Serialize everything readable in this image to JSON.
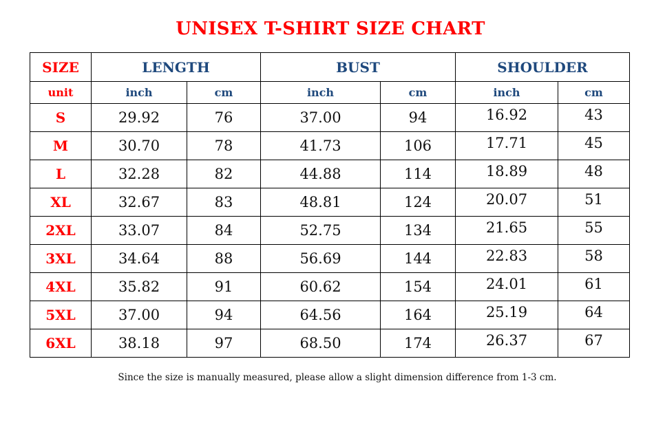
{
  "title": "UNISEX T-SHIRT SIZE CHART",
  "headers": {
    "size": "SIZE",
    "length": "LENGTH",
    "bust": "BUST",
    "shoulder": "SHOULDER"
  },
  "units": {
    "label": "unit",
    "inch": "inch",
    "cm": "cm"
  },
  "rows": [
    {
      "size": "S",
      "length_in": "29.92",
      "length_cm": "76",
      "bust_in": "37.00",
      "bust_cm": "94",
      "shoulder_in": "16.92",
      "shoulder_cm": "43"
    },
    {
      "size": "M",
      "length_in": "30.70",
      "length_cm": "78",
      "bust_in": "41.73",
      "bust_cm": "106",
      "shoulder_in": "17.71",
      "shoulder_cm": "45"
    },
    {
      "size": "L",
      "length_in": "32.28",
      "length_cm": "82",
      "bust_in": "44.88",
      "bust_cm": "114",
      "shoulder_in": "18.89",
      "shoulder_cm": "48"
    },
    {
      "size": "XL",
      "length_in": "32.67",
      "length_cm": "83",
      "bust_in": "48.81",
      "bust_cm": "124",
      "shoulder_in": "20.07",
      "shoulder_cm": "51"
    },
    {
      "size": "2XL",
      "length_in": "33.07",
      "length_cm": "84",
      "bust_in": "52.75",
      "bust_cm": "134",
      "shoulder_in": "21.65",
      "shoulder_cm": "55"
    },
    {
      "size": "3XL",
      "length_in": "34.64",
      "length_cm": "88",
      "bust_in": "56.69",
      "bust_cm": "144",
      "shoulder_in": "22.83",
      "shoulder_cm": "58"
    },
    {
      "size": "4XL",
      "length_in": "35.82",
      "length_cm": "91",
      "bust_in": "60.62",
      "bust_cm": "154",
      "shoulder_in": "24.01",
      "shoulder_cm": "61"
    },
    {
      "size": "5XL",
      "length_in": "37.00",
      "length_cm": "94",
      "bust_in": "64.56",
      "bust_cm": "164",
      "shoulder_in": "25.19",
      "shoulder_cm": "64"
    },
    {
      "size": "6XL",
      "length_in": "38.18",
      "length_cm": "97",
      "bust_in": "68.50",
      "bust_cm": "174",
      "shoulder_in": "26.37",
      "shoulder_cm": "67"
    }
  ],
  "note": "Since the size is manually measured, please allow a slight dimension difference from 1-3 cm.",
  "colors": {
    "title": "#ff0000",
    "header": "#1f497d",
    "size": "#ff0000"
  }
}
